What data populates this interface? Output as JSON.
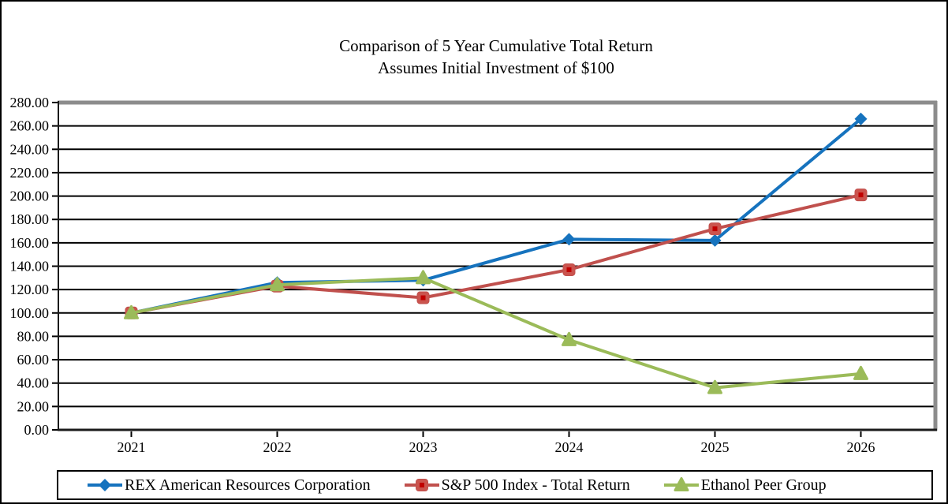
{
  "chart_data": {
    "type": "line",
    "title": "Comparison of 5 Year Cumulative Total Return",
    "subtitle": "Assumes Initial Investment of $100",
    "categories": [
      "2021",
      "2022",
      "2023",
      "2024",
      "2025",
      "2026"
    ],
    "series": [
      {
        "name": "REX American Resources Corporation",
        "color": "#1673BE",
        "marker": "diamond",
        "values": [
          100.0,
          126.0,
          128.0,
          163.0,
          162.0,
          266.0
        ]
      },
      {
        "name": "S&P 500 Index - Total Return",
        "color": "#C0504D",
        "marker": "square",
        "marker_fill": "#CB544E",
        "marker_dot": "#C00000",
        "values": [
          100.0,
          123.0,
          113.0,
          137.0,
          172.0,
          201.0
        ]
      },
      {
        "name": "Ethanol Peer Group",
        "color": "#9BBB59",
        "marker": "triangle",
        "values": [
          100.0,
          124.0,
          130.0,
          77.0,
          36.0,
          48.0
        ]
      }
    ],
    "ylim": [
      0,
      280
    ],
    "ytick_step": 20,
    "ytick_labels": [
      "0.00",
      "20.00",
      "40.00",
      "60.00",
      "80.00",
      "100.00",
      "120.00",
      "140.00",
      "160.00",
      "180.00",
      "200.00",
      "220.00",
      "240.00",
      "260.00",
      "280.00"
    ],
    "grid": true,
    "gridline_color": "#000000",
    "axis_color": "#1A1A1A",
    "plot_border_color": "#8C8C8C",
    "legend_position": "bottom"
  }
}
